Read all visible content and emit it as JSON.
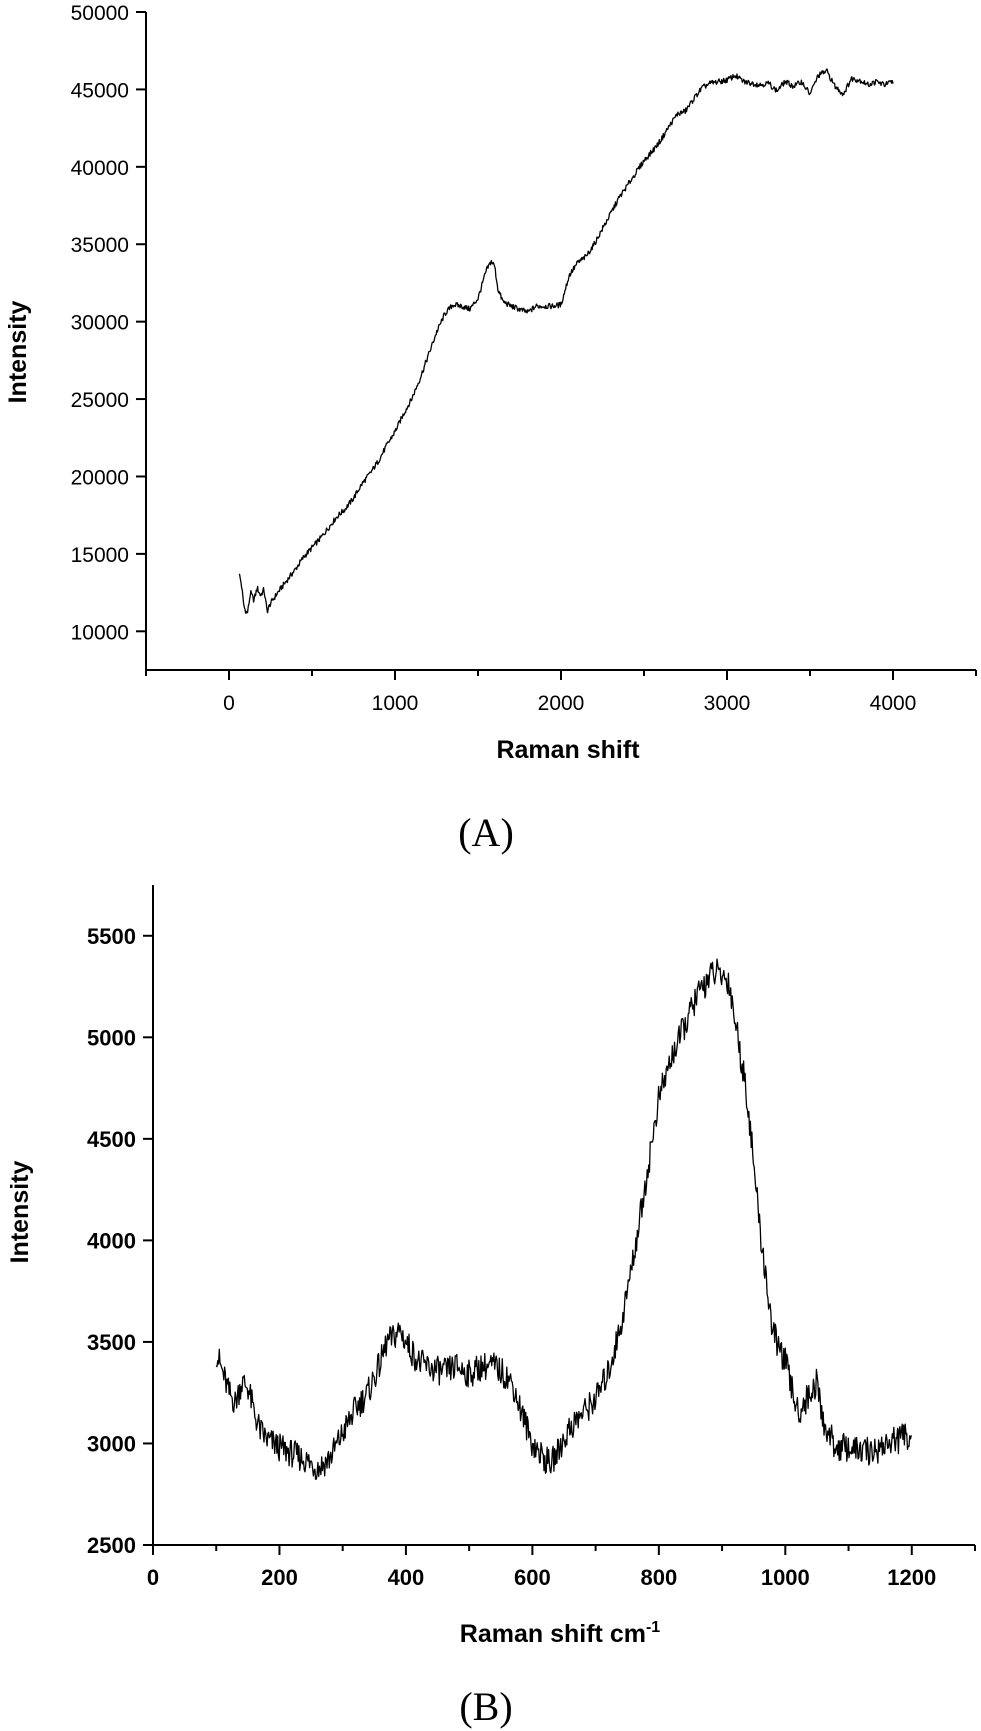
{
  "chart_data": [
    {
      "type": "line",
      "panel_label": "(A)",
      "xlabel": "Raman shift",
      "ylabel": "Intensity",
      "xlim": [
        -500,
        4500
      ],
      "ylim": [
        7500,
        50000
      ],
      "x_ticks": [
        0,
        1000,
        2000,
        3000,
        4000
      ],
      "x_minor_ticks": [
        -500,
        500,
        1500,
        2500,
        3500,
        4500
      ],
      "y_ticks": [
        10000,
        15000,
        20000,
        25000,
        30000,
        35000,
        40000,
        45000,
        50000
      ],
      "y_tick_labels": [
        "10000",
        "15000",
        "20000",
        "25000",
        "30000",
        "35000",
        "40000",
        "45000",
        "50000"
      ],
      "grid": false,
      "series": [
        {
          "color": "#000000",
          "x": [
            60,
            75,
            90,
            110,
            130,
            150,
            170,
            190,
            210,
            230,
            250,
            300,
            350,
            400,
            450,
            500,
            550,
            600,
            650,
            700,
            750,
            800,
            850,
            900,
            950,
            1000,
            1050,
            1100,
            1150,
            1200,
            1250,
            1300,
            1350,
            1400,
            1450,
            1500,
            1550,
            1580,
            1600,
            1620,
            1650,
            1700,
            1750,
            1800,
            1850,
            1900,
            1950,
            2000,
            2050,
            2100,
            2150,
            2200,
            2250,
            2300,
            2350,
            2400,
            2450,
            2500,
            2550,
            2600,
            2650,
            2700,
            2750,
            2800,
            2850,
            2900,
            2950,
            3000,
            3050,
            3100,
            3150,
            3200,
            3250,
            3300,
            3350,
            3400,
            3450,
            3500,
            3550,
            3600,
            3650,
            3700,
            3750,
            3800,
            3850,
            3900,
            3950,
            4000
          ],
          "y": [
            13800,
            13000,
            11600,
            11100,
            12500,
            12000,
            12800,
            12300,
            12700,
            11300,
            11800,
            12600,
            13300,
            14000,
            14800,
            15400,
            16000,
            16700,
            17400,
            17900,
            18600,
            19500,
            20200,
            21000,
            22000,
            22900,
            24000,
            25000,
            26300,
            27800,
            29300,
            30500,
            31100,
            31000,
            30800,
            31500,
            33300,
            33900,
            33600,
            32100,
            31300,
            31000,
            30800,
            30600,
            31000,
            31000,
            31000,
            31100,
            33000,
            33800,
            34200,
            35000,
            36000,
            37000,
            38000,
            38800,
            39600,
            40400,
            41000,
            41700,
            42600,
            43400,
            43600,
            44400,
            45100,
            45400,
            45500,
            45600,
            45900,
            45500,
            45400,
            45300,
            45400,
            44900,
            45500,
            45200,
            45500,
            44700,
            45900,
            46200,
            45200,
            44700,
            45700,
            45600,
            45300,
            45500,
            45300,
            45500
          ]
        }
      ]
    },
    {
      "type": "line",
      "panel_label": "(B)",
      "xlabel": "Raman shift cm",
      "xlabel_sup": "-1",
      "ylabel": "Intensity",
      "xlim": [
        0,
        1300
      ],
      "ylim": [
        2500,
        5750
      ],
      "x_ticks": [
        0,
        200,
        400,
        600,
        800,
        1000,
        1200
      ],
      "x_minor_ticks": [
        100,
        300,
        500,
        700,
        900,
        1100,
        1300
      ],
      "y_ticks": [
        2500,
        3000,
        3500,
        4000,
        4500,
        5000,
        5500
      ],
      "y_tick_labels": [
        "2500",
        "3000",
        "3500",
        "4000",
        "4500",
        "5000",
        "5500"
      ],
      "grid": false,
      "series": [
        {
          "color": "#000000",
          "x": [
            100,
            110,
            120,
            130,
            140,
            150,
            160,
            170,
            180,
            190,
            200,
            220,
            240,
            260,
            270,
            280,
            300,
            320,
            340,
            360,
            370,
            380,
            390,
            400,
            420,
            440,
            460,
            480,
            500,
            520,
            540,
            560,
            570,
            580,
            600,
            620,
            630,
            640,
            660,
            680,
            700,
            720,
            740,
            760,
            780,
            800,
            820,
            840,
            860,
            870,
            880,
            890,
            900,
            910,
            920,
            940,
            960,
            980,
            1000,
            1020,
            1040,
            1050,
            1060,
            1080,
            1100,
            1120,
            1140,
            1160,
            1180,
            1200
          ],
          "y": [
            3450,
            3350,
            3250,
            3200,
            3300,
            3280,
            3150,
            3060,
            3020,
            3000,
            2980,
            2950,
            2920,
            2880,
            2900,
            2930,
            3050,
            3170,
            3250,
            3400,
            3500,
            3520,
            3560,
            3500,
            3400,
            3370,
            3350,
            3380,
            3340,
            3380,
            3380,
            3330,
            3280,
            3180,
            3000,
            2920,
            2900,
            2960,
            3080,
            3150,
            3220,
            3350,
            3580,
            3920,
            4300,
            4700,
            4900,
            5050,
            5200,
            5250,
            5300,
            5320,
            5300,
            5280,
            5100,
            4700,
            4050,
            3550,
            3400,
            3150,
            3250,
            3300,
            3100,
            2980,
            2980,
            2960,
            2960,
            3000,
            3020,
            3050
          ]
        }
      ]
    }
  ]
}
